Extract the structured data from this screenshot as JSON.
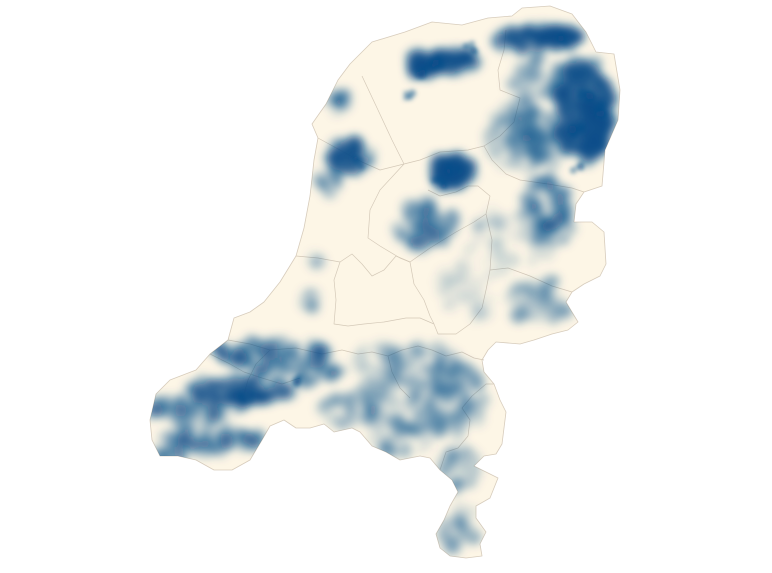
{
  "map": {
    "country": "Netherlands",
    "basemap_fill": "#fdf6e6",
    "boundary_color": "#d4c9b8",
    "density_color_light": "#c7d9e8",
    "density_color_dark": "#0b4f8a",
    "background": "#ffffff",
    "visible_text": "none",
    "layers": [
      "province-outlines",
      "density-heatmap"
    ]
  }
}
